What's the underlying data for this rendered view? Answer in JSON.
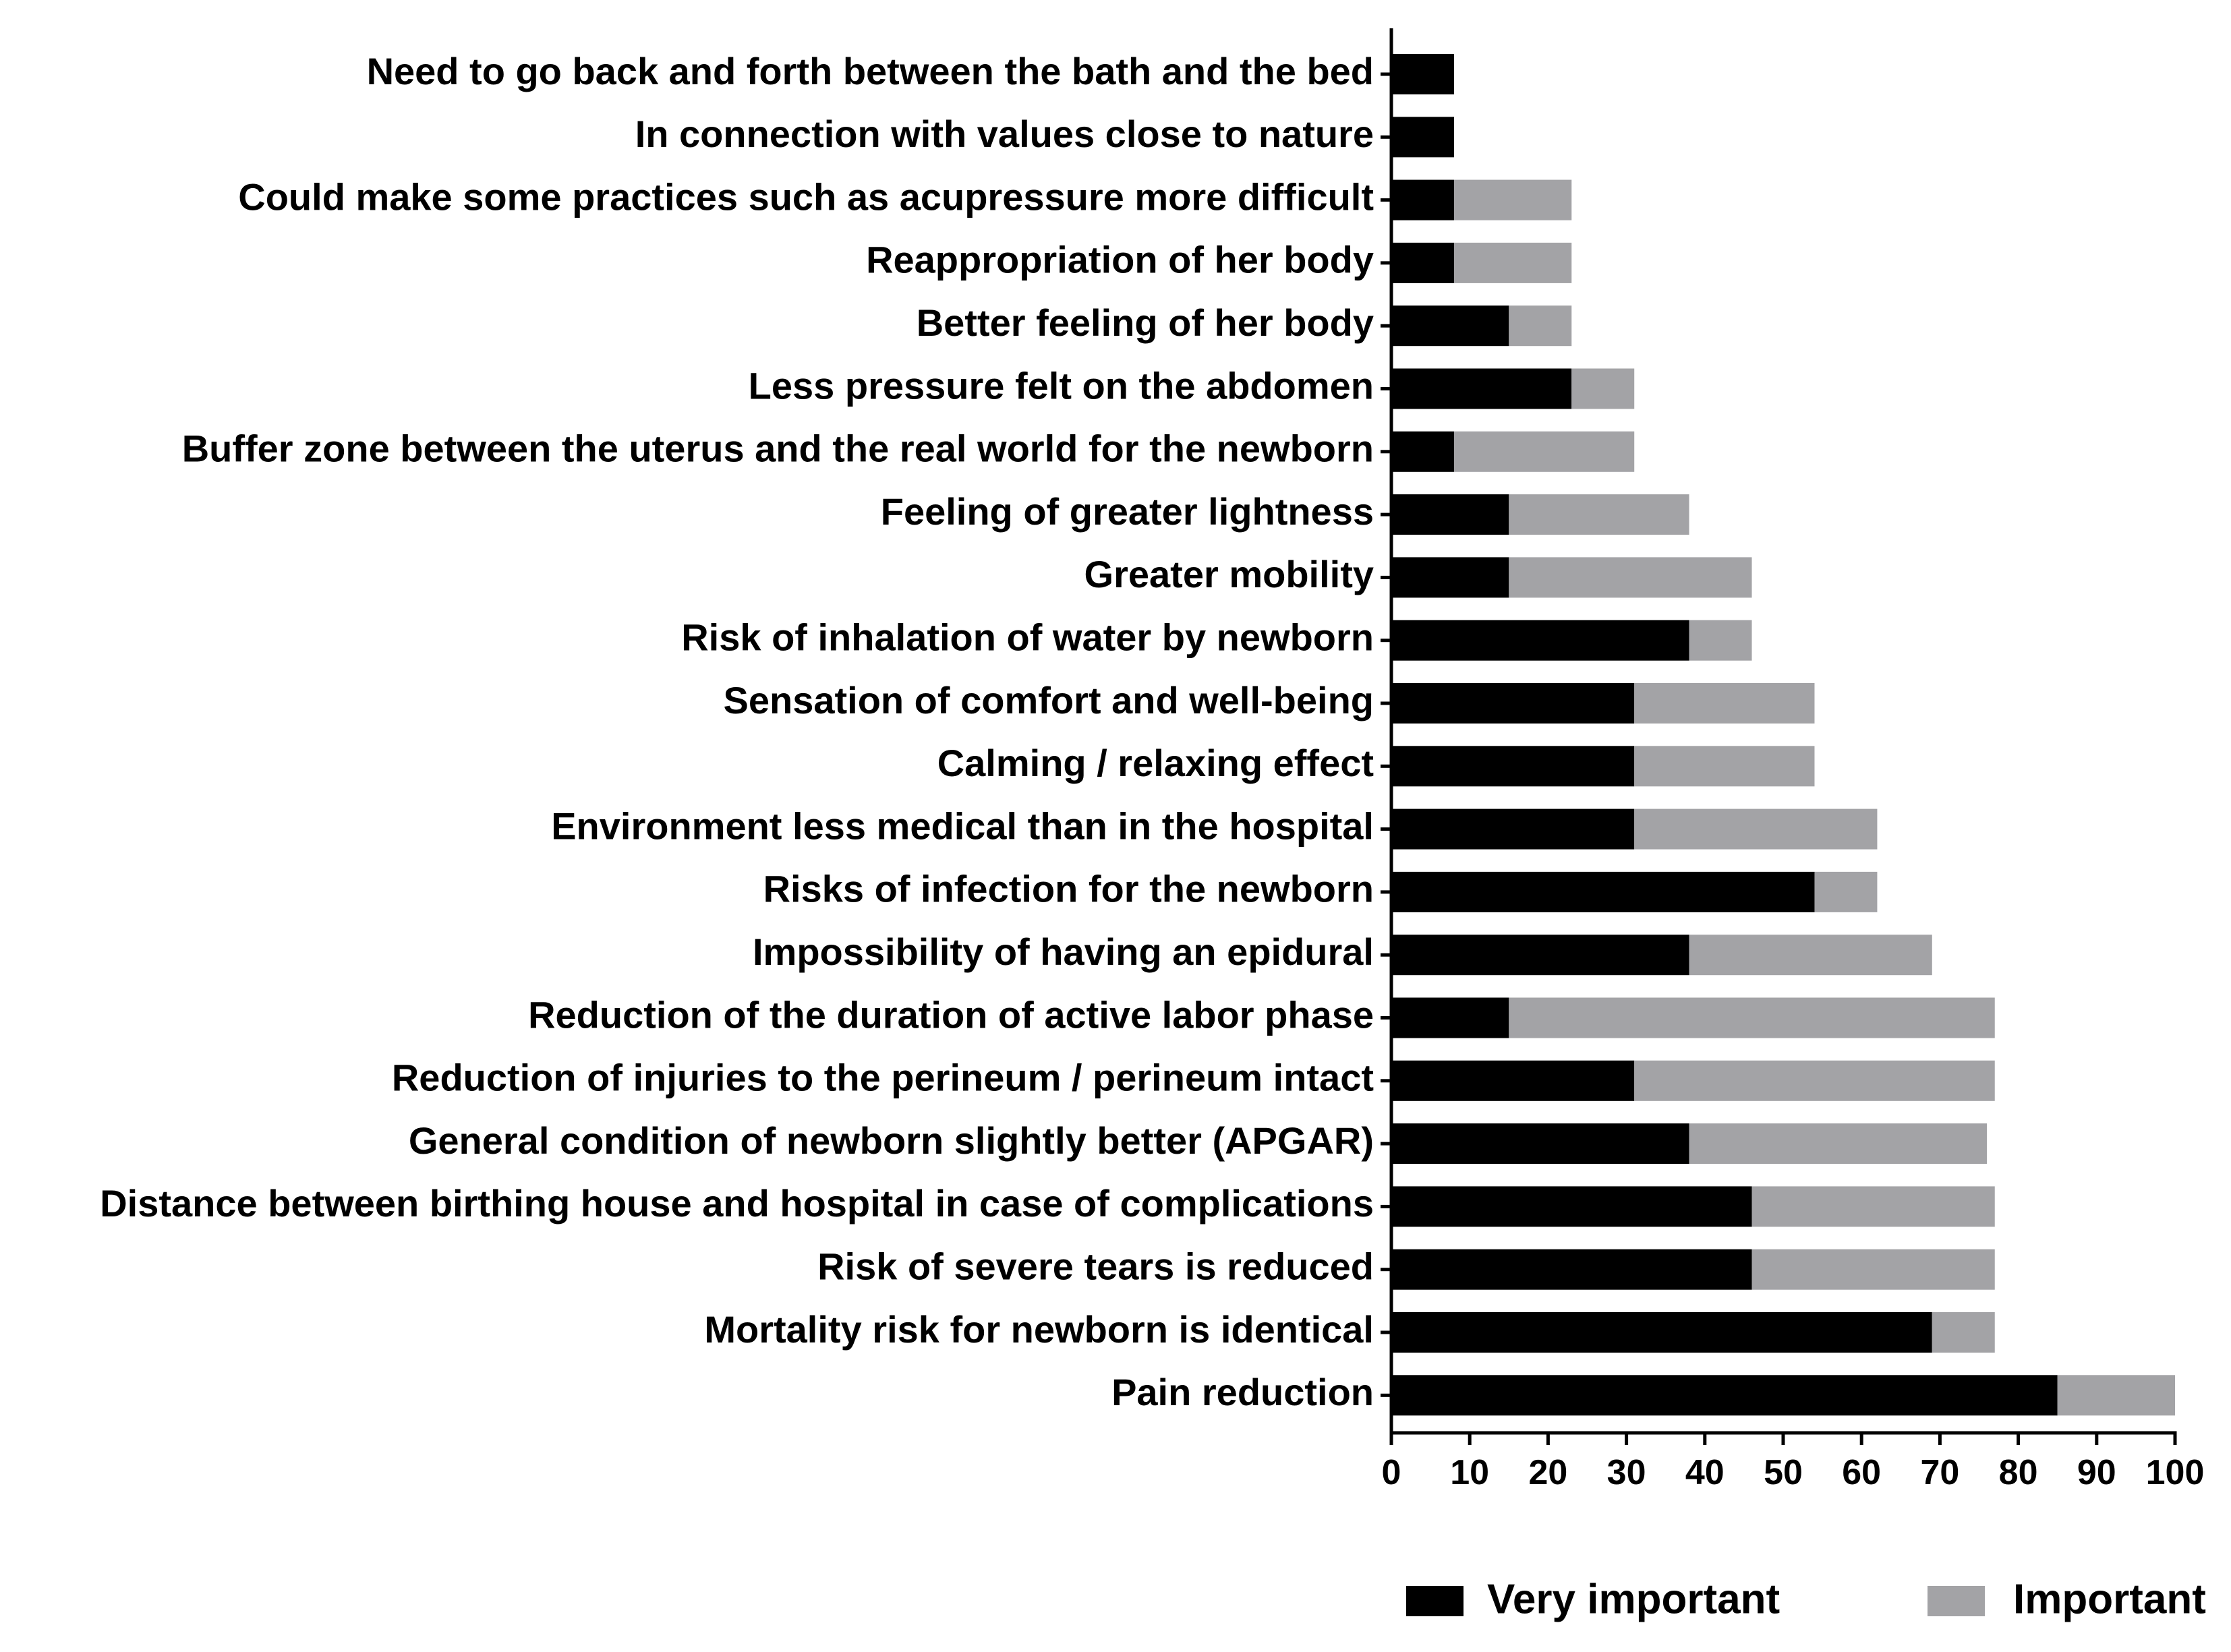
{
  "chart_data": {
    "type": "bar",
    "orientation": "horizontal",
    "stacked": true,
    "title": "",
    "xlabel": "",
    "ylabel": "",
    "xlim": [
      0,
      100
    ],
    "xticks": [
      0,
      10,
      20,
      30,
      40,
      50,
      60,
      70,
      80,
      90,
      100
    ],
    "grid": false,
    "legend_position": "bottom",
    "categories": [
      "Need to go back and forth between the bath and the bed",
      "In connection with values close to nature",
      "Could make some practices such as acupressure more difficult",
      "Reappropriation of her body",
      "Better feeling of her body",
      "Less pressure felt on the abdomen",
      "Buffer zone between the uterus and the real world for the newborn",
      "Feeling of greater lightness",
      "Greater mobility",
      "Risk of inhalation of water by newborn",
      "Sensation of comfort and well-being",
      "Calming / relaxing effect",
      "Environment less medical than in the hospital",
      "Risks of infection for the newborn",
      "Impossibility of having an epidural",
      "Reduction of the duration of active labor phase",
      "Reduction of injuries to the perineum / perineum intact",
      "General condition of newborn slightly better (APGAR)",
      "Distance between birthing house and hospital in case of complications",
      "Risk of severe tears is reduced",
      "Mortality risk for newborn is identical",
      "Pain reduction"
    ],
    "series": [
      {
        "name": "Very important",
        "color": "#000000",
        "values": [
          8,
          8,
          8,
          8,
          15,
          23,
          8,
          15,
          15,
          38,
          31,
          31,
          31,
          54,
          38,
          15,
          31,
          38,
          46,
          46,
          69,
          85
        ]
      },
      {
        "name": "Important",
        "color": "#a3a3a6",
        "values": [
          0,
          0,
          15,
          15,
          8,
          8,
          23,
          23,
          31,
          8,
          23,
          23,
          31,
          8,
          31,
          62,
          46,
          38,
          31,
          31,
          8,
          15
        ]
      }
    ]
  }
}
